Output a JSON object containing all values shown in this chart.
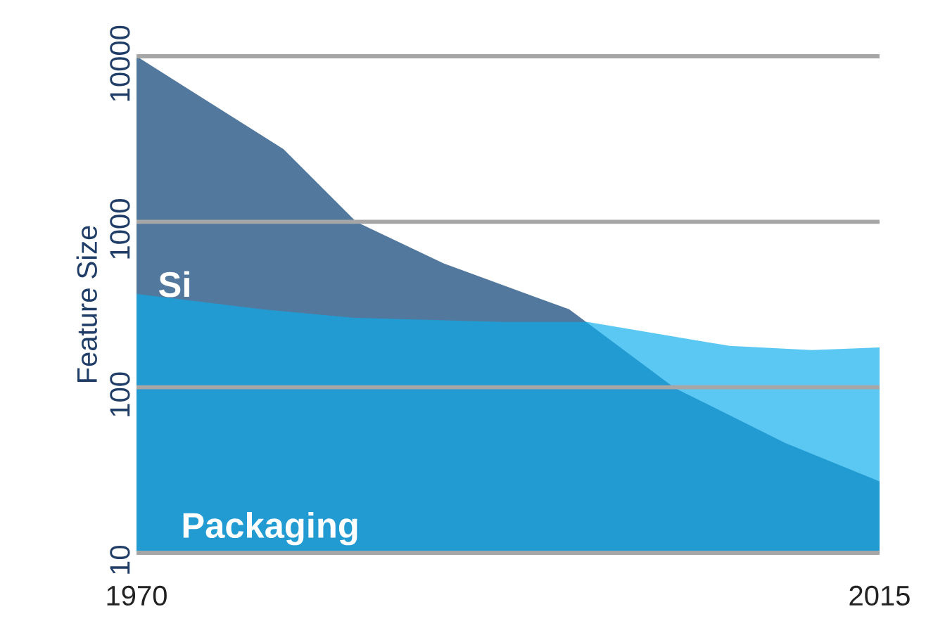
{
  "chart_data": {
    "type": "area",
    "ylabel": "Feature Size",
    "log": "y",
    "grid": "y",
    "legend": false,
    "marker": "none",
    "xlim": [
      1970,
      2015
    ],
    "xticks": [
      1970,
      2015
    ],
    "ylim": [
      10,
      10000
    ],
    "yticks": [
      10,
      100,
      1000,
      10000
    ],
    "series": [
      {
        "name": "Si",
        "color": "#52789d",
        "x": [
          1970,
          1978.9,
          1983.3,
          1988.6,
          1996.2,
          2002.6,
          2009.3,
          2015
        ],
        "values": [
          10000,
          2750,
          1000,
          560,
          296,
          99,
          46,
          27
        ]
      },
      {
        "name": "Packaging",
        "color": "#0aaded",
        "x": [
          1970,
          1977.6,
          1983.1,
          1992.2,
          1997.3,
          2005.9,
          2010.9,
          2015
        ],
        "values": [
          366,
          296,
          263,
          248,
          248,
          178,
          168,
          174
        ]
      }
    ]
  }
}
